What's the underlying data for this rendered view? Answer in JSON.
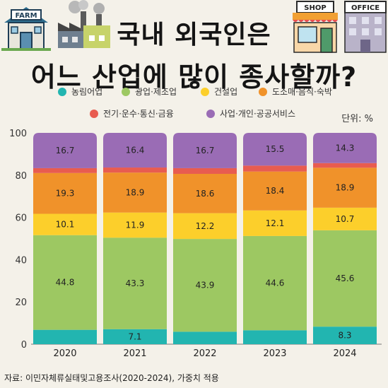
{
  "header": {
    "title_line1": "국내 외국인은",
    "title_line2": "어느 산업에 많이 종사할까?",
    "farm_sign": "FARM",
    "shop_sign": "SHOP",
    "office_sign": "OFFICE"
  },
  "unit_label": "단위: %",
  "source": "자료: 이민자체류실태및고용조사(2020-2024), 가중치 적용",
  "colors": {
    "농림어업": "#22b5b0",
    "광업·제조업": "#9dc862",
    "건설업": "#fccf2b",
    "도소매·음식·숙박": "#f0922a",
    "전기·운수·통신·금융": "#e85c50",
    "사업·개인·공공서비스": "#9a6cb5"
  },
  "chart_data": {
    "type": "bar",
    "stacked": true,
    "orientation": "vertical",
    "categories": [
      "2020",
      "2021",
      "2022",
      "2023",
      "2024"
    ],
    "ylim": [
      0,
      100
    ],
    "yticks": [
      0,
      20,
      40,
      60,
      80,
      100
    ],
    "grid": false,
    "legend_position": "top",
    "series": [
      {
        "name": "농림어업",
        "values": [
          6.8,
          7.1,
          5.9,
          6.6,
          8.3
        ],
        "labels": [
          "",
          "7.1",
          "",
          "",
          "8.3"
        ]
      },
      {
        "name": "광업·제조업",
        "values": [
          44.8,
          43.3,
          43.9,
          44.6,
          45.6
        ],
        "labels": [
          "44.8",
          "43.3",
          "43.9",
          "44.6",
          "45.6"
        ]
      },
      {
        "name": "건설업",
        "values": [
          10.1,
          11.9,
          12.2,
          12.1,
          10.7
        ],
        "labels": [
          "10.1",
          "11.9",
          "12.2",
          "12.1",
          "10.7"
        ]
      },
      {
        "name": "도소매·음식·숙박",
        "values": [
          19.3,
          18.9,
          18.6,
          18.4,
          18.9
        ],
        "labels": [
          "19.3",
          "18.9",
          "18.6",
          "18.4",
          "18.9"
        ]
      },
      {
        "name": "전기·운수·통신·금융",
        "values": [
          2.3,
          2.4,
          2.7,
          2.8,
          2.2
        ],
        "labels": [
          "",
          "",
          "",
          "",
          ""
        ]
      },
      {
        "name": "사업·개인·공공서비스",
        "values": [
          16.7,
          16.4,
          16.7,
          15.5,
          14.3
        ],
        "labels": [
          "16.7",
          "16.4",
          "16.7",
          "15.5",
          "14.3"
        ]
      }
    ]
  }
}
